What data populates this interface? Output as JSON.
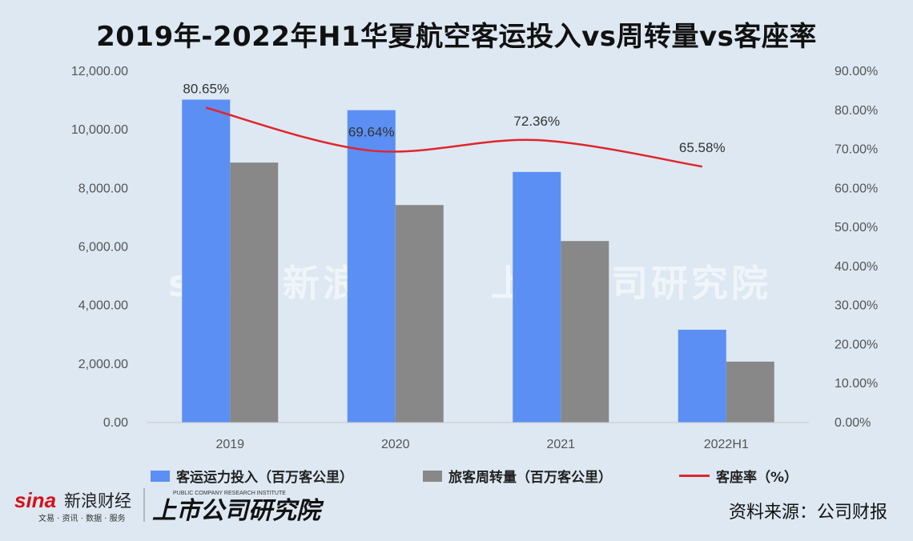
{
  "chart_data": {
    "type": "bar",
    "title": "2019年-2022年H1华夏航空客运投入vs周转量vs客座率",
    "categories": [
      "2019",
      "2020",
      "2021",
      "2022H1"
    ],
    "series": [
      {
        "name": "客运运力投入（百万客公里）",
        "type": "bar",
        "axis": "left",
        "color": "#5b8ff4",
        "values": [
          11030,
          10670,
          8560,
          3170
        ]
      },
      {
        "name": "旅客周转量（百万客公里）",
        "type": "bar",
        "axis": "left",
        "color": "#888888",
        "values": [
          8880,
          7430,
          6200,
          2080
        ]
      },
      {
        "name": "客座率（%）",
        "type": "line",
        "axis": "right",
        "color": "#e0262c",
        "values": [
          80.65,
          69.64,
          72.36,
          65.58
        ],
        "labels": [
          "80.65%",
          "69.64%",
          "72.36%",
          "65.58%"
        ]
      }
    ],
    "y_left": {
      "range": [
        0,
        12000
      ],
      "ticks": [
        "0.00",
        "2,000.00",
        "4,000.00",
        "6,000.00",
        "8,000.00",
        "10,000.00",
        "12,000.00"
      ]
    },
    "y_right": {
      "range": [
        0,
        90
      ],
      "ticks": [
        "0.00%",
        "10.00%",
        "20.00%",
        "30.00%",
        "40.00%",
        "50.00%",
        "60.00%",
        "70.00%",
        "80.00%",
        "90.00%"
      ]
    },
    "grid": false,
    "legend": "bottom"
  },
  "footer": {
    "logo_text": "新浪财经",
    "logo_sub": "文易 · 资讯 · 数据 · 服务",
    "research_text": "上市公司研究院",
    "research_sub": "PUBLIC COMPANY RESEARCH INSTITUTE",
    "source": "资料来源：公司财报"
  }
}
